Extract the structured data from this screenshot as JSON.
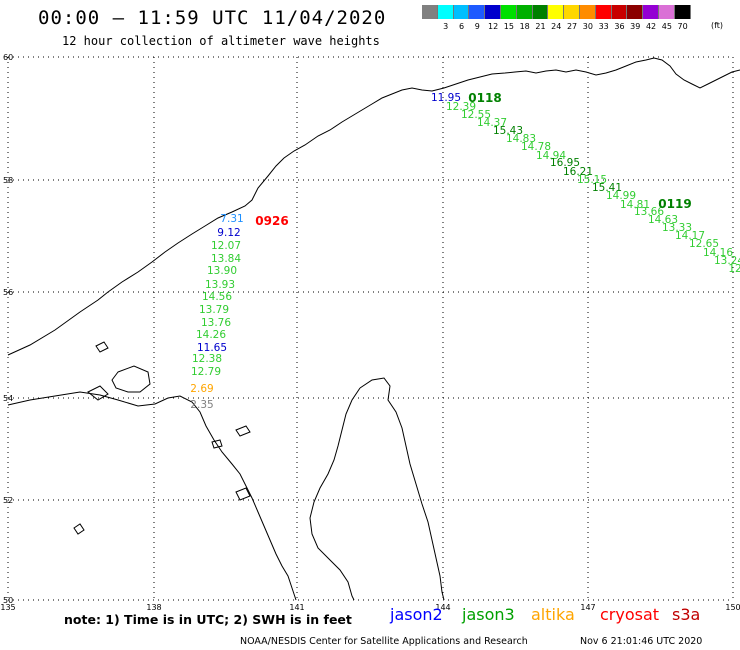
{
  "header": {
    "title": "00:00 — 11:59 UTC 11/04/2020",
    "subtitle": "12 hour collection of altimeter wave heights"
  },
  "color_scale": {
    "unit": "(ft)",
    "entries": [
      {
        "label": "",
        "color": "#808080"
      },
      {
        "label": "3",
        "color": "#00ffff"
      },
      {
        "label": "6",
        "color": "#00bfff"
      },
      {
        "label": "9",
        "color": "#1e5aff"
      },
      {
        "label": "12",
        "color": "#0000cd"
      },
      {
        "label": "15",
        "color": "#00e000"
      },
      {
        "label": "18",
        "color": "#00b000"
      },
      {
        "label": "21",
        "color": "#008000"
      },
      {
        "label": "24",
        "color": "#ffff00"
      },
      {
        "label": "27",
        "color": "#ffd700"
      },
      {
        "label": "30",
        "color": "#ff8c00"
      },
      {
        "label": "33",
        "color": "#ff0000"
      },
      {
        "label": "36",
        "color": "#c80000"
      },
      {
        "label": "39",
        "color": "#8b0000"
      },
      {
        "label": "42",
        "color": "#9400d3"
      },
      {
        "label": "45",
        "color": "#da70d6"
      },
      {
        "label": "70",
        "color": "#000000"
      }
    ]
  },
  "map": {
    "lat_labels": [
      "60",
      "58",
      "56",
      "54",
      "52",
      "50"
    ],
    "lon_labels": [
      "135",
      "138",
      "141",
      "144",
      "147",
      "150"
    ],
    "pass_times": [
      {
        "text": "0926",
        "color": "#ff0000"
      },
      {
        "text": "0118",
        "color": "#008000"
      },
      {
        "text": "0119",
        "color": "#008000"
      }
    ],
    "track_a": [
      {
        "text": "7.31",
        "color": "#1e90ff"
      },
      {
        "text": "9.12",
        "color": "#0000cd"
      },
      {
        "text": "12.07",
        "color": "#32cd32"
      },
      {
        "text": "13.84",
        "color": "#32cd32"
      },
      {
        "text": "13.90",
        "color": "#32cd32"
      },
      {
        "text": "13.93",
        "color": "#32cd32"
      },
      {
        "text": "14.56",
        "color": "#32cd32"
      },
      {
        "text": "13.79",
        "color": "#32cd32"
      },
      {
        "text": "13.76",
        "color": "#32cd32"
      },
      {
        "text": "14.26",
        "color": "#32cd32"
      },
      {
        "text": "11.65",
        "color": "#0000cd"
      },
      {
        "text": "12.38",
        "color": "#32cd32"
      },
      {
        "text": "12.79",
        "color": "#32cd32"
      },
      {
        "text": "2.69",
        "color": "#ffa500"
      },
      {
        "text": "2.35",
        "color": "#808080"
      }
    ],
    "track_b": [
      {
        "text": "11.95",
        "color": "#0000cd"
      },
      {
        "text": "12.39",
        "color": "#32cd32"
      },
      {
        "text": "12.55",
        "color": "#32cd32"
      },
      {
        "text": "14.37",
        "color": "#32cd32"
      },
      {
        "text": "15.43",
        "color": "#008000"
      },
      {
        "text": "14.83",
        "color": "#32cd32"
      },
      {
        "text": "14.78",
        "color": "#32cd32"
      },
      {
        "text": "14.94",
        "color": "#32cd32"
      },
      {
        "text": "16.95",
        "color": "#008000"
      },
      {
        "text": "16.21",
        "color": "#008000"
      },
      {
        "text": "15.15",
        "color": "#32cd32"
      },
      {
        "text": "15.41",
        "color": "#008000"
      },
      {
        "text": "14.99",
        "color": "#32cd32"
      },
      {
        "text": "14.81",
        "color": "#32cd32"
      },
      {
        "text": "13.66",
        "color": "#32cd32"
      },
      {
        "text": "14.63",
        "color": "#32cd32"
      },
      {
        "text": "13.33",
        "color": "#32cd32"
      },
      {
        "text": "14.17",
        "color": "#32cd32"
      },
      {
        "text": "12.65",
        "color": "#32cd32"
      },
      {
        "text": "14.16",
        "color": "#32cd32"
      },
      {
        "text": "13.24",
        "color": "#32cd32"
      },
      {
        "text": "12",
        "color": "#32cd32"
      }
    ]
  },
  "footer": {
    "note": "note:  1) Time is in UTC;  2) SWH is in feet",
    "legend": [
      {
        "text": "jason2",
        "color": "#0000ff"
      },
      {
        "text": "jason3",
        "color": "#00a000"
      },
      {
        "text": "altika",
        "color": "#ffa500"
      },
      {
        "text": "cryosat",
        "color": "#ff0000"
      },
      {
        "text": "s3a",
        "color": "#c00000"
      }
    ],
    "credit": "NOAA/NESDIS Center for Satellite Applications and Research",
    "timestamp": "Nov  6 21:01:46 UTC 2020"
  }
}
